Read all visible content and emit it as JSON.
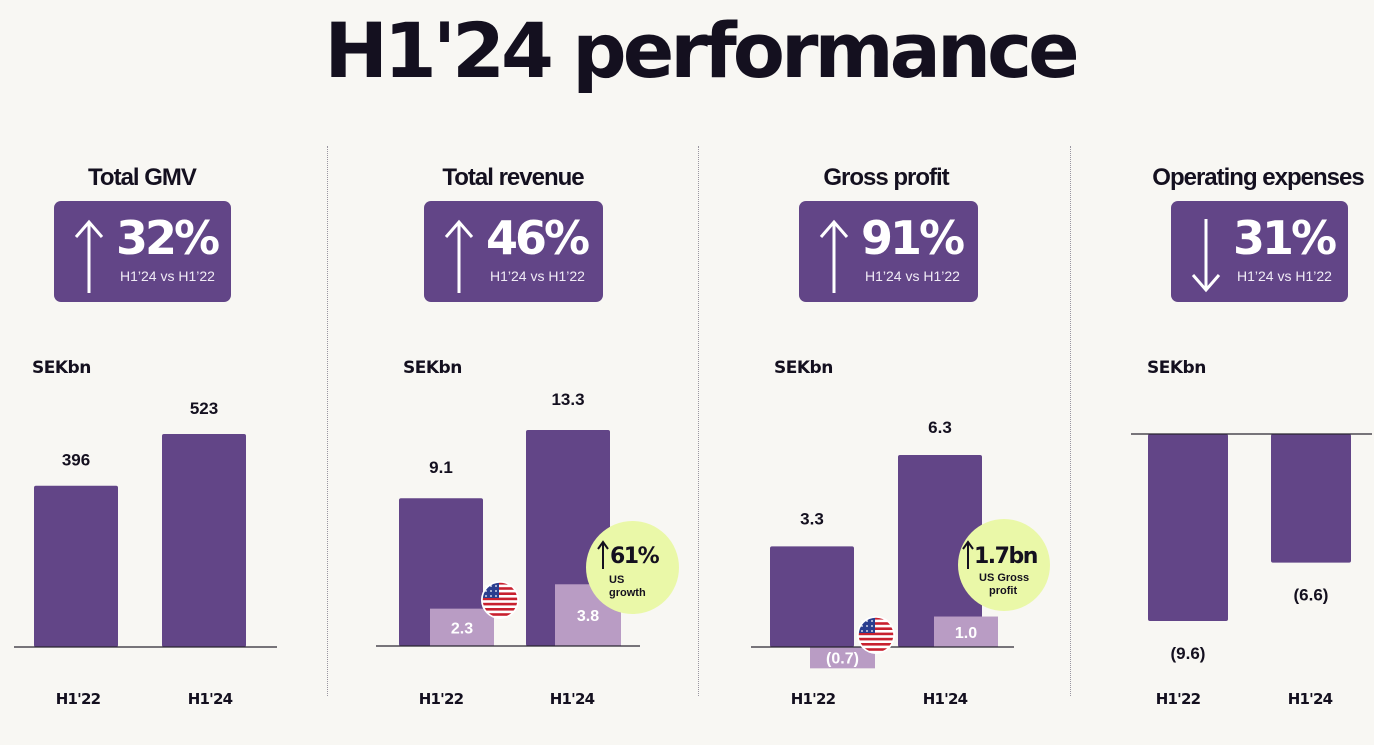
{
  "title": "H1'24 performance",
  "colors": {
    "bar": "#624587",
    "us_bar": "#b99cc4",
    "callout": "#eaf8a8",
    "background": "#f8f7f3"
  },
  "panels": [
    {
      "title": "Total GMV",
      "kpi": {
        "direction": "up",
        "value": "32%",
        "comparison": "H1’24 vs H1’22"
      },
      "unit": "SEKbn"
    },
    {
      "title": "Total revenue",
      "kpi": {
        "direction": "up",
        "value": "46%",
        "comparison": "H1’24 vs H1’22"
      },
      "unit": "SEKbn",
      "callout": {
        "value": "61%",
        "label_line1": "US",
        "label_line2": "growth",
        "icon": "up-arrow-icon"
      }
    },
    {
      "title": "Gross profit",
      "kpi": {
        "direction": "up",
        "value": "91%",
        "comparison": "H1’24 vs H1’22"
      },
      "unit": "SEKbn",
      "callout": {
        "value": "1.7bn",
        "label_line1": "US Gross",
        "label_line2": "profit",
        "icon": "up-arrow-icon"
      }
    },
    {
      "title": "Operating expenses",
      "kpi": {
        "direction": "down",
        "value": "31%",
        "comparison": "H1’24 vs H1’22"
      },
      "unit": "SEKbn"
    }
  ],
  "chart_data": [
    {
      "type": "bar",
      "title": "Total GMV",
      "ylabel": "SEKbn",
      "categories": [
        "H1'22",
        "H1'24"
      ],
      "series": [
        {
          "values": [
            396,
            523
          ],
          "labels": [
            "396",
            "523"
          ]
        }
      ]
    },
    {
      "type": "bar",
      "title": "Total revenue",
      "ylabel": "SEKbn",
      "categories": [
        "H1'22",
        "H1'24"
      ],
      "series": [
        {
          "values": [
            9.1,
            13.3
          ],
          "labels": [
            "9.1",
            "13.3"
          ]
        },
        {
          "values": [
            2.3,
            3.8
          ],
          "labels": [
            "2.3",
            "3.8"
          ],
          "icon": "us-flag-icon"
        }
      ]
    },
    {
      "type": "bar",
      "title": "Gross profit",
      "ylabel": "SEKbn",
      "categories": [
        "H1'22",
        "H1'24"
      ],
      "series": [
        {
          "values": [
            3.3,
            6.3
          ],
          "labels": [
            "3.3",
            "6.3"
          ]
        },
        {
          "values": [
            -0.7,
            1.0
          ],
          "labels": [
            "(0.7)",
            "1.0"
          ],
          "icon": "us-flag-icon"
        }
      ]
    },
    {
      "type": "bar",
      "title": "Operating expenses",
      "ylabel": "SEKbn",
      "categories": [
        "H1'22",
        "H1'24"
      ],
      "series": [
        {
          "values": [
            -9.6,
            -6.6
          ],
          "labels": [
            "(9.6)",
            "(6.6)"
          ]
        }
      ]
    }
  ]
}
